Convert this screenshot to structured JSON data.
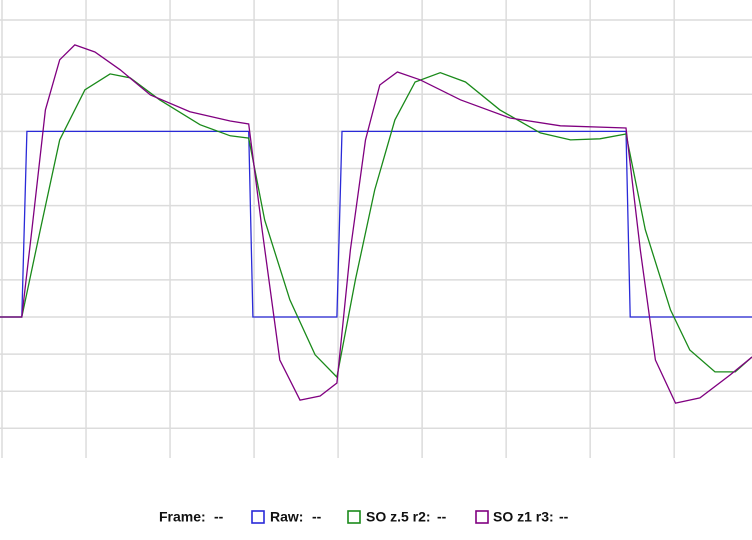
{
  "chart_data": {
    "type": "line",
    "xlim": [
      0,
      8.95
    ],
    "ylim": [
      -3.8,
      8.54
    ],
    "xticks": [
      0,
      1,
      2,
      3,
      4,
      5,
      6,
      7,
      8
    ],
    "yticks": [
      -3,
      -2,
      -1,
      0,
      1,
      2,
      3,
      4,
      5,
      6,
      7,
      8
    ],
    "grid": true,
    "frame_label": "Frame:",
    "frame_value": "--",
    "series": [
      {
        "name": "Raw:",
        "readout": "--",
        "color": "#2a2ad8",
        "x": [
          0,
          0.26,
          0.32,
          2.96,
          3.01,
          4.01,
          4.07,
          7.45,
          7.5,
          8.95
        ],
        "values": [
          0,
          0,
          5,
          5,
          0,
          0,
          5,
          5,
          0,
          0
        ]
      },
      {
        "name": "SO z.5 r2:",
        "readout": "--",
        "color": "#1a8a1a",
        "x": [
          0,
          0.26,
          0.48,
          0.71,
          1.01,
          1.31,
          1.55,
          1.9,
          2.38,
          2.74,
          2.96,
          3.15,
          3.45,
          3.75,
          4.01,
          4.23,
          4.46,
          4.7,
          4.94,
          5.24,
          5.54,
          5.95,
          6.43,
          6.79,
          7.14,
          7.45,
          7.68,
          7.98,
          8.21,
          8.51,
          8.75,
          8.95
        ],
        "values": [
          0,
          0,
          2.35,
          4.77,
          6.12,
          6.55,
          6.44,
          5.85,
          5.18,
          4.88,
          4.82,
          2.61,
          0.46,
          -1.02,
          -1.62,
          1.0,
          3.42,
          5.31,
          6.33,
          6.58,
          6.33,
          5.58,
          4.96,
          4.77,
          4.8,
          4.93,
          2.35,
          0.19,
          -0.89,
          -1.48,
          -1.48,
          -1.08
        ]
      },
      {
        "name": "SO z1 r3:",
        "readout": "--",
        "color": "#800080",
        "x": [
          0,
          0.26,
          0.38,
          0.54,
          0.71,
          0.89,
          1.13,
          1.43,
          1.79,
          2.26,
          2.74,
          2.96,
          3.12,
          3.33,
          3.57,
          3.81,
          4.01,
          4.17,
          4.35,
          4.52,
          4.73,
          5.0,
          5.48,
          6.07,
          6.67,
          7.45,
          7.62,
          7.8,
          8.04,
          8.33,
          8.69,
          8.95
        ],
        "values": [
          0,
          0,
          2.35,
          5.58,
          6.93,
          7.33,
          7.14,
          6.66,
          5.98,
          5.53,
          5.28,
          5.2,
          2.35,
          -1.16,
          -2.24,
          -2.13,
          -1.78,
          1.81,
          4.77,
          6.25,
          6.6,
          6.39,
          5.85,
          5.36,
          5.15,
          5.09,
          1.81,
          -1.16,
          -2.32,
          -2.18,
          -1.56,
          -1.08
        ]
      }
    ]
  }
}
